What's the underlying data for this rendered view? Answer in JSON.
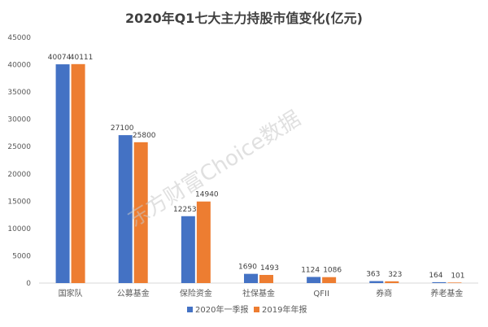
{
  "chart_data": {
    "type": "bar",
    "title": "2020年Q1七大主力持股市值变化(亿元)",
    "categories": [
      "国家队",
      "公募基金",
      "保险资金",
      "社保基金",
      "QFII",
      "券商",
      "养老基金"
    ],
    "series": [
      {
        "name": "2020年一季报",
        "color": "#4472c4",
        "values": [
          40074,
          27100,
          12253,
          1690,
          1124,
          363,
          164
        ]
      },
      {
        "name": "2019年年报",
        "color": "#ed7d31",
        "values": [
          40111,
          25800,
          14940,
          1493,
          1086,
          323,
          101
        ]
      }
    ],
    "ylim": [
      0,
      45000
    ],
    "yticks": [
      0,
      5000,
      10000,
      15000,
      20000,
      25000,
      30000,
      35000,
      40000,
      45000
    ],
    "grid": false,
    "legend_position": "bottom",
    "watermark": "东方财富Choice数据"
  }
}
